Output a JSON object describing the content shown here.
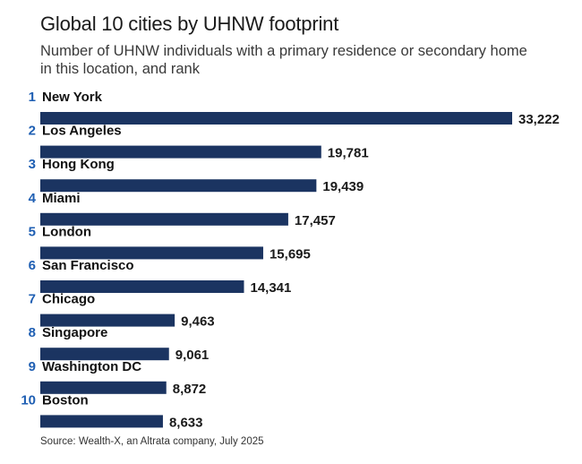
{
  "chart_data": {
    "type": "bar",
    "orientation": "horizontal",
    "title": "Global 10 cities by UHNW footprint",
    "subtitle": "Number of UHNW individuals with a primary residence or secondary home in this location, and rank",
    "ranks": [
      "1",
      "2",
      "3",
      "4",
      "5",
      "6",
      "7",
      "8",
      "9",
      "10"
    ],
    "categories": [
      "New York",
      "Los Angeles",
      "Hong Kong",
      "Miami",
      "London",
      "San Francisco",
      "Chicago",
      "Singapore",
      "Washington DC",
      "Boston"
    ],
    "values": [
      33222,
      19781,
      19439,
      17457,
      15695,
      14341,
      9463,
      9061,
      8872,
      8633
    ],
    "value_labels": [
      "33,222",
      "19,781",
      "19,439",
      "17,457",
      "15,695",
      "14,341",
      "9,463",
      "9,061",
      "8,872",
      "8,633"
    ],
    "xlim": [
      0,
      33222
    ],
    "grid": false,
    "bar_color": "#1b3461",
    "rank_color": "#1f5fb3",
    "source": "Source: Wealth-X, an Altrata company, July 2025"
  }
}
